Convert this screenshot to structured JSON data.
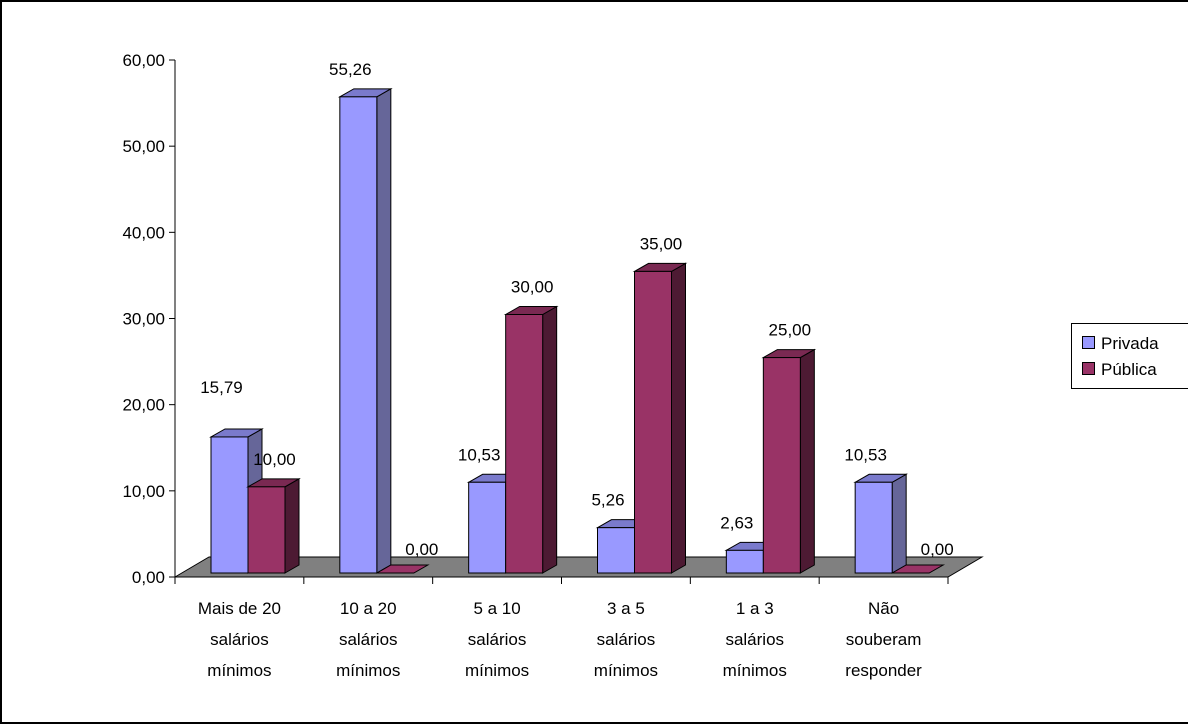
{
  "colors": {
    "privada_front": "#9999FF",
    "privada_side": "#666699",
    "privada_top": "#7A7ACC",
    "publica_front": "#993366",
    "publica_side": "#4D1A33",
    "publica_top": "#7A2952",
    "floor": "#808080",
    "axis": "#000000"
  },
  "chart_data": {
    "type": "bar",
    "title": "",
    "xlabel": "",
    "ylabel": "",
    "ylim": [
      0,
      60
    ],
    "y_ticks": [
      "0,00",
      "10,00",
      "20,00",
      "30,00",
      "40,00",
      "50,00",
      "60,00"
    ],
    "categories": [
      [
        "Mais de 20",
        "salários",
        "mínimos"
      ],
      [
        "10 a 20",
        "salários",
        "mínimos"
      ],
      [
        "5 a 10",
        "salários",
        "mínimos"
      ],
      [
        "3 a 5",
        "salários",
        "mínimos"
      ],
      [
        "1 a 3",
        "salários",
        "mínimos"
      ],
      [
        "Não",
        "souberam",
        "responder"
      ]
    ],
    "series": [
      {
        "name": "Privada",
        "values": [
          15.79,
          55.26,
          10.53,
          5.26,
          2.63,
          10.53
        ],
        "labels": [
          "15,79",
          "55,26",
          "10,53",
          "5,26",
          "2,63",
          "10,53"
        ]
      },
      {
        "name": "Pública",
        "values": [
          10.0,
          0.0,
          30.0,
          35.0,
          25.0,
          0.0
        ],
        "labels": [
          "10,00",
          "0,00",
          "30,00",
          "35,00",
          "25,00",
          "0,00"
        ]
      }
    ],
    "legend_position": "right",
    "grid": false,
    "style": "3d-clustered-column"
  }
}
